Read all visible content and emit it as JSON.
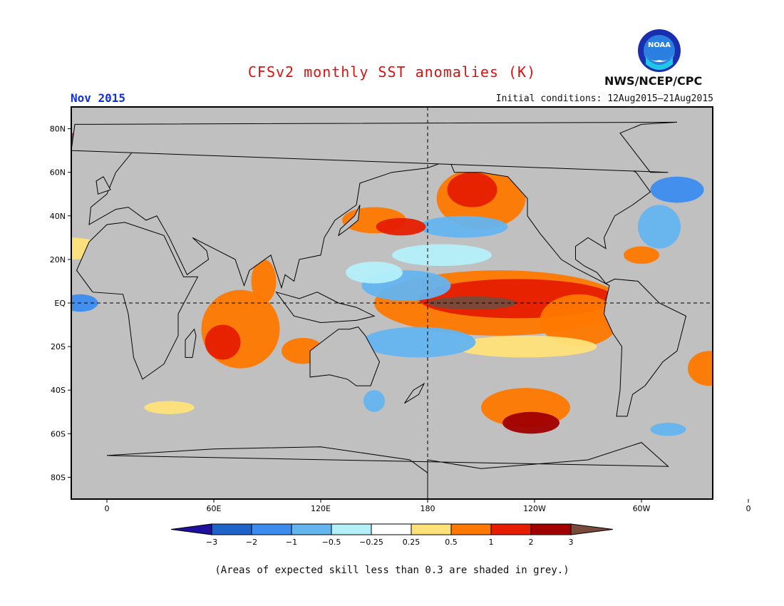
{
  "header": {
    "title": "CFSv2 monthly SST anomalies (K)",
    "month": "Nov 2015",
    "initial_conditions": "Initial conditions: 12Aug2015–21Aug2015",
    "agency": "NWS/NCEP/CPC",
    "logo_text": "NOAA"
  },
  "map": {
    "lat_labels": [
      "80N",
      "60N",
      "40N",
      "20N",
      "EQ",
      "20S",
      "40S",
      "60S",
      "80S"
    ],
    "lon_labels": [
      "0",
      "60E",
      "120E",
      "180",
      "120W",
      "60W",
      "0"
    ],
    "reference_lines": [
      "EQ",
      "180"
    ],
    "land_color": "#c0c0c0",
    "low_skill_color": "#c0c0c0"
  },
  "legend": {
    "unit": "K",
    "tick_labels": [
      "−3",
      "−2",
      "−1",
      "−0.5",
      "−0.25",
      "0.25",
      "0.5",
      "1",
      "2",
      "3"
    ],
    "colors": [
      "#2010a0",
      "#1e64c8",
      "#3c8cf0",
      "#64b4f0",
      "#b4f0fa",
      "#ffffff",
      "#ffe17a",
      "#ff7800",
      "#e61e00",
      "#a00000",
      "#784b3c"
    ]
  },
  "footnote": "(Areas of expected skill less than 0.3 are shaded in grey.)"
}
